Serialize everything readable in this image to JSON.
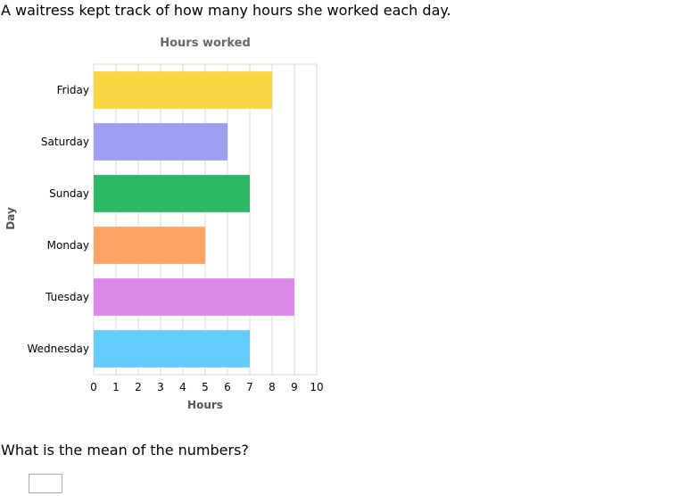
{
  "intro_text": "A waitress kept track of how many hours she worked each day.",
  "question_text": "What is the mean of the numbers?",
  "answer": {
    "value": ""
  },
  "chart_data": {
    "type": "bar",
    "orientation": "horizontal",
    "title": "Hours worked",
    "xlabel": "Hours",
    "ylabel": "Day",
    "categories": [
      "Friday",
      "Saturday",
      "Sunday",
      "Monday",
      "Tuesday",
      "Wednesday"
    ],
    "values": [
      8,
      6,
      7,
      5,
      9,
      7
    ],
    "colors": [
      "#f9d641",
      "#9d9ff0",
      "#2eb866",
      "#ffa366",
      "#db89e9",
      "#64cdfd"
    ],
    "xlim": [
      0,
      10
    ],
    "xticks": [
      0,
      1,
      2,
      3,
      4,
      5,
      6,
      7,
      8,
      9,
      10
    ],
    "grid": true,
    "legend": "none"
  }
}
